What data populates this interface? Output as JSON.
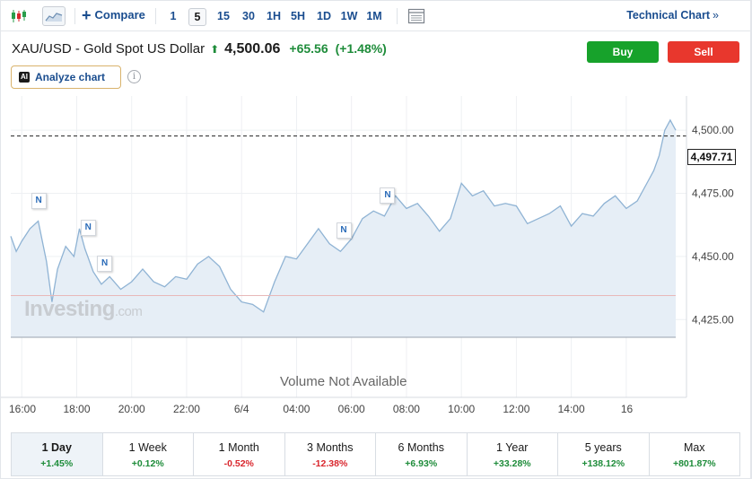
{
  "toolbar": {
    "compare_label": "Compare",
    "timeframes": [
      "1",
      "5",
      "15",
      "30",
      "1H",
      "5H",
      "1D",
      "1W",
      "1M"
    ],
    "active_timeframe": "5",
    "technical_label": "Technical Chart",
    "technical_chevron": "»"
  },
  "quote": {
    "name": "XAU/USD - Gold Spot US Dollar",
    "price": "4,500.06",
    "change": "+65.56",
    "change_pct": "(+1.48%)",
    "arrow": "⬆"
  },
  "actions": {
    "buy": "Buy",
    "sell": "Sell"
  },
  "analyze": {
    "badge": "AI",
    "label": "Analyze chart",
    "info": "i"
  },
  "chart": {
    "current_price": "4,497.71",
    "watermark": "Investing",
    "watermark_suffix": ".com",
    "volume_text": "Volume Not Available",
    "news_marker": "N",
    "colors": {
      "line": "#8fb3d4",
      "fill": "#e6eef6",
      "baseline": "#e8b8b8"
    }
  },
  "chart_data": {
    "type": "area",
    "y_ticks": [
      "4,500.00",
      "4,475.00",
      "4,450.00",
      "4,425.00"
    ],
    "x_ticks": [
      "16:00",
      "18:00",
      "20:00",
      "22:00",
      "6/4",
      "04:00",
      "06:00",
      "08:00",
      "10:00",
      "12:00",
      "14:00",
      "16"
    ],
    "ylim": [
      4418,
      4510
    ],
    "xlim": [
      15.6,
      39.8
    ],
    "previous_close": 4434.5,
    "last_price": 4497.71,
    "x": [
      15.6,
      15.8,
      16.0,
      16.3,
      16.6,
      16.9,
      17.1,
      17.3,
      17.6,
      17.9,
      18.1,
      18.3,
      18.6,
      18.9,
      19.2,
      19.6,
      20.0,
      20.4,
      20.8,
      21.2,
      21.6,
      22.0,
      22.4,
      22.8,
      23.2,
      23.6,
      24.0,
      24.4,
      24.8,
      25.2,
      25.6,
      26.0,
      26.4,
      26.8,
      27.2,
      27.6,
      28.0,
      28.4,
      28.8,
      29.2,
      29.6,
      30.0,
      30.4,
      30.8,
      31.2,
      31.6,
      32.0,
      32.4,
      32.8,
      33.2,
      33.6,
      34.0,
      34.4,
      34.8,
      35.2,
      35.6,
      36.0,
      36.4,
      36.8,
      37.2,
      37.6,
      38.0,
      38.4,
      38.8,
      39.0,
      39.2,
      39.4,
      39.6,
      39.8
    ],
    "values": [
      4458,
      4452,
      4456,
      4461,
      4464,
      4448,
      4432,
      4445,
      4454,
      4450,
      4461,
      4453,
      4444,
      4439,
      4442,
      4437,
      4440,
      4445,
      4440,
      4438,
      4442,
      4441,
      4447,
      4450,
      4446,
      4437,
      4432,
      4431,
      4428,
      4440,
      4450,
      4449,
      4455,
      4461,
      4455,
      4452,
      4457,
      4465,
      4468,
      4466,
      4474,
      4469,
      4471,
      4466,
      4460,
      4465,
      4479,
      4474,
      4476,
      4470,
      4471,
      4470,
      4463,
      4465,
      4467,
      4470,
      4462,
      4467,
      4466,
      4471,
      4474,
      4469,
      4472,
      4480,
      4484,
      4490,
      4500,
      4504,
      4500
    ],
    "news_at": [
      16.6,
      18.4,
      19.0,
      27.7,
      29.3
    ]
  },
  "periods": [
    {
      "label": "1 Day",
      "change": "+1.45%",
      "dir": "pos",
      "active": true
    },
    {
      "label": "1 Week",
      "change": "+0.12%",
      "dir": "pos",
      "active": false
    },
    {
      "label": "1 Month",
      "change": "-0.52%",
      "dir": "neg",
      "active": false
    },
    {
      "label": "3 Months",
      "change": "-12.38%",
      "dir": "neg",
      "active": false
    },
    {
      "label": "6 Months",
      "change": "+6.93%",
      "dir": "pos",
      "active": false
    },
    {
      "label": "1 Year",
      "change": "+33.28%",
      "dir": "pos",
      "active": false
    },
    {
      "label": "5 years",
      "change": "+138.12%",
      "dir": "pos",
      "active": false
    },
    {
      "label": "Max",
      "change": "+801.87%",
      "dir": "pos",
      "active": false
    }
  ]
}
